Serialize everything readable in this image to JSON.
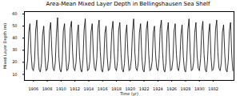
{
  "chart_data": {
    "type": "line",
    "title": "Area-Mean Mixed Layer Depth in Bellingshausen Sea Shelf",
    "x_label": "Time (yr)",
    "y_label": "Mixed Layer Depth (m)",
    "color": "#000000",
    "grid": false,
    "xlim": [
      1904.7,
      1935
    ],
    "ylim": [
      5,
      62
    ],
    "xticks": [
      1906,
      1908,
      1910,
      1912,
      1914,
      1916,
      1918,
      1920,
      1922,
      1924,
      1926,
      1928,
      1930,
      1932
    ],
    "yticks": [
      10,
      20,
      30,
      40,
      50,
      60
    ],
    "x": [
      1905,
      1905.17,
      1905.33,
      1905.5,
      1905.67,
      1905.83,
      1906,
      1906.17,
      1906.33,
      1906.5,
      1906.67,
      1906.83,
      1907,
      1907.17,
      1907.33,
      1907.5,
      1907.67,
      1907.83,
      1908,
      1908.17,
      1908.33,
      1908.5,
      1908.67,
      1908.83,
      1909,
      1909.17,
      1909.33,
      1909.5,
      1909.67,
      1909.83,
      1910,
      1910.17,
      1910.33,
      1910.5,
      1910.67,
      1910.83,
      1911,
      1911.17,
      1911.33,
      1911.5,
      1911.67,
      1911.83,
      1912,
      1912.17,
      1912.33,
      1912.5,
      1912.67,
      1912.83,
      1913,
      1913.17,
      1913.33,
      1913.5,
      1913.67,
      1913.83,
      1914,
      1914.17,
      1914.33,
      1914.5,
      1914.67,
      1914.83,
      1915,
      1915.17,
      1915.33,
      1915.5,
      1915.67,
      1915.83,
      1916,
      1916.17,
      1916.33,
      1916.5,
      1916.67,
      1916.83,
      1917,
      1917.17,
      1917.33,
      1917.5,
      1917.67,
      1917.83,
      1918,
      1918.17,
      1918.33,
      1918.5,
      1918.67,
      1918.83,
      1919,
      1919.17,
      1919.33,
      1919.5,
      1919.67,
      1919.83,
      1920,
      1920.17,
      1920.33,
      1920.5,
      1920.67,
      1920.83,
      1921,
      1921.17,
      1921.33,
      1921.5,
      1921.67,
      1921.83,
      1922,
      1922.17,
      1922.33,
      1922.5,
      1922.67,
      1922.83,
      1923,
      1923.17,
      1923.33,
      1923.5,
      1923.67,
      1923.83,
      1924,
      1924.17,
      1924.33,
      1924.5,
      1924.67,
      1924.83,
      1925,
      1925.17,
      1925.33,
      1925.5,
      1925.67,
      1925.83,
      1926,
      1926.17,
      1926.33,
      1926.5,
      1926.67,
      1926.83,
      1927,
      1927.17,
      1927.33,
      1927.5,
      1927.67,
      1927.83,
      1928,
      1928.17,
      1928.33,
      1928.5,
      1928.67,
      1928.83,
      1929,
      1929.17,
      1929.33,
      1929.5,
      1929.67,
      1929.83,
      1930,
      1930.17,
      1930.33,
      1930.5,
      1930.67,
      1930.83,
      1931,
      1931.17,
      1931.33,
      1931.5,
      1931.67,
      1931.83,
      1932,
      1932.17,
      1932.33,
      1932.5,
      1932.67,
      1932.83,
      1933,
      1933.17,
      1933.33,
      1933.5,
      1933.67,
      1933.83,
      1934,
      1934.17,
      1934.33,
      1934.5,
      1934.67,
      1934.83
    ],
    "values": [
      14,
      22,
      45,
      52,
      27,
      15,
      13,
      21,
      47,
      55,
      28,
      14,
      12,
      19,
      43,
      50,
      25,
      13,
      14,
      23,
      46,
      53,
      29,
      15,
      13,
      20,
      44,
      57,
      26,
      14,
      12,
      21,
      46,
      52,
      27,
      13,
      14,
      22,
      48,
      54,
      28,
      15,
      13,
      20,
      43,
      51,
      25,
      14,
      12,
      22,
      47,
      56,
      27,
      13,
      14,
      21,
      45,
      52,
      26,
      15,
      13,
      23,
      48,
      55,
      29,
      14,
      12,
      20,
      44,
      50,
      25,
      13,
      14,
      22,
      46,
      54,
      28,
      15,
      13,
      21,
      47,
      53,
      27,
      14,
      12,
      19,
      43,
      51,
      26,
      13,
      14,
      23,
      46,
      56,
      28,
      15,
      13,
      20,
      45,
      52,
      25,
      14,
      12,
      22,
      47,
      54,
      27,
      13,
      14,
      21,
      44,
      50,
      26,
      15,
      13,
      23,
      48,
      55,
      29,
      14,
      12,
      20,
      45,
      53,
      26,
      13,
      14,
      22,
      46,
      52,
      27,
      15,
      13,
      21,
      43,
      51,
      25,
      14,
      12,
      22,
      47,
      56,
      28,
      13,
      14,
      20,
      45,
      53,
      26,
      15,
      13,
      23,
      46,
      54,
      27,
      14,
      12,
      21,
      44,
      52,
      25,
      13,
      14,
      22,
      47,
      55,
      28,
      15,
      13,
      20,
      45,
      51,
      26,
      14,
      12,
      21,
      46,
      53,
      27,
      13
    ]
  }
}
